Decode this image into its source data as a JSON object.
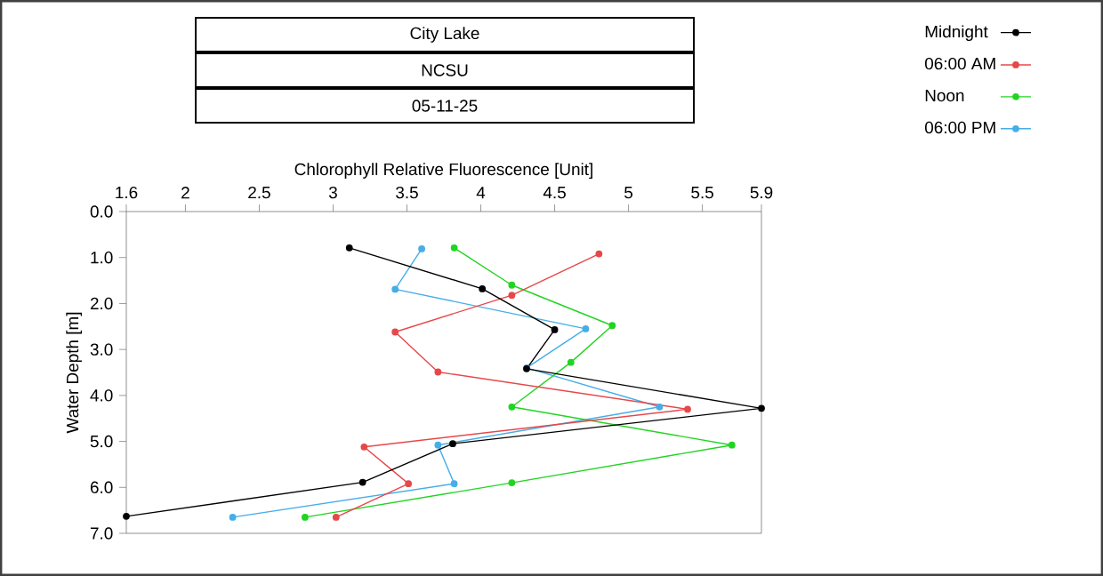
{
  "chart_data": {
    "type": "line",
    "title": "City Lake",
    "subtitle": "NCSU",
    "annotations": [
      "05-11-25"
    ],
    "xlabel": "Chlorophyll Relative Fluorescence [Unit]",
    "ylabel": "Water Depth [m]",
    "xlim": [
      1.6,
      5.9
    ],
    "xticks": [
      1.6,
      2,
      2.5,
      3,
      3.5,
      4,
      4.5,
      5,
      5.5,
      5.9
    ],
    "ylim": [
      7,
      0
    ],
    "yticks": [
      {
        "value": 0,
        "label": "0.0"
      },
      {
        "value": 1,
        "label": "1.0"
      },
      {
        "value": 2,
        "label": "2.0"
      },
      {
        "value": 3,
        "label": "3.0"
      },
      {
        "value": 4,
        "label": "4.0"
      },
      {
        "value": 5,
        "label": "5.0"
      },
      {
        "value": 6,
        "label": "6.0"
      },
      {
        "value": 7,
        "label": "7.0"
      }
    ],
    "marker": "circle",
    "legend": "top right",
    "series": [
      {
        "name": "Midnight",
        "color": "#000000",
        "x": [
          3.11,
          4.01,
          4.5,
          4.31,
          5.9,
          3.81,
          3.2,
          1.6
        ],
        "values": [
          0.79,
          1.68,
          2.57,
          3.42,
          4.28,
          5.05,
          5.89,
          6.63
        ]
      },
      {
        "name": "06:00 AM",
        "color": "#e8474a",
        "x": [
          4.8,
          4.21,
          3.42,
          3.71,
          5.4,
          3.21,
          3.51,
          3.02
        ],
        "values": [
          0.92,
          1.82,
          2.62,
          3.49,
          4.3,
          5.12,
          5.92,
          6.65
        ]
      },
      {
        "name": "Noon",
        "color": "#22d422",
        "x": [
          3.82,
          4.21,
          4.89,
          4.61,
          4.21,
          5.7,
          4.21,
          2.81
        ],
        "values": [
          0.79,
          1.6,
          2.48,
          3.28,
          4.25,
          5.08,
          5.9,
          6.65
        ]
      },
      {
        "name": "06:00 PM",
        "color": "#45aee8",
        "x": [
          3.6,
          3.42,
          4.71,
          4.31,
          5.21,
          3.71,
          3.82,
          2.32
        ],
        "values": [
          0.81,
          1.69,
          2.55,
          3.4,
          4.25,
          5.08,
          5.92,
          6.65
        ]
      }
    ]
  }
}
